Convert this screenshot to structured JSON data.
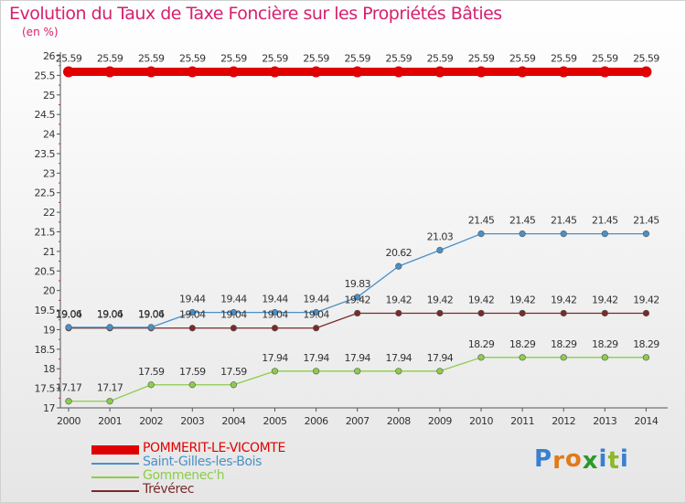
{
  "chart_data": {
    "type": "line",
    "title": "Evolution du Taux de Taxe Foncière sur les Propriétés Bâties",
    "ylabel": "(en %)",
    "xlabel": "",
    "categories": [
      "2000",
      "2001",
      "2002",
      "2003",
      "2004",
      "2005",
      "2006",
      "2007",
      "2008",
      "2009",
      "2010",
      "2011",
      "2012",
      "2013",
      "2014"
    ],
    "ylim": [
      17,
      26
    ],
    "yticks": [
      "17",
      "17.5",
      "18",
      "18.5",
      "19",
      "19.5",
      "20",
      "20.5",
      "21",
      "21.5",
      "22",
      "22.5",
      "23",
      "23.5",
      "24",
      "24.5",
      "25",
      "25.5",
      "26"
    ],
    "series": [
      {
        "name": "POMMERIT-LE-VICOMTE",
        "color": "#e00000",
        "values": [
          25.59,
          25.59,
          25.59,
          25.59,
          25.59,
          25.59,
          25.59,
          25.59,
          25.59,
          25.59,
          25.59,
          25.59,
          25.59,
          25.59,
          25.59
        ],
        "labels": [
          "25.59",
          "25.59",
          "25.59",
          "25.59",
          "25.59",
          "25.59",
          "25.59",
          "25.59",
          "25.59",
          "25.59",
          "25.59",
          "25.59",
          "25.59",
          "25.59",
          "25.59"
        ]
      },
      {
        "name": "Saint-Gilles-les-Bois",
        "color": "#4a90c8",
        "values": [
          19.06,
          19.06,
          19.06,
          19.44,
          19.44,
          19.44,
          19.44,
          19.83,
          20.62,
          21.03,
          21.45,
          21.45,
          21.45,
          21.45,
          21.45
        ],
        "labels": [
          "19.06",
          "19.06",
          "19.06",
          "19.44",
          "19.44",
          "19.44",
          "19.44",
          "19.83",
          "20.62",
          "21.03",
          "21.45",
          "21.45",
          "21.45",
          "21.45",
          "21.45"
        ]
      },
      {
        "name": "Gommenec'h",
        "color": "#8ccd4a",
        "values": [
          17.17,
          17.17,
          17.59,
          17.59,
          17.59,
          17.94,
          17.94,
          17.94,
          17.94,
          17.94,
          18.29,
          18.29,
          18.29,
          18.29,
          18.29
        ],
        "labels": [
          "17.17",
          "17.17",
          "17.59",
          "17.59",
          "17.59",
          "17.94",
          "17.94",
          "17.94",
          "17.94",
          "17.94",
          "18.29",
          "18.29",
          "18.29",
          "18.29",
          "18.29"
        ]
      },
      {
        "name": "Trévérec",
        "color": "#7a2a2a",
        "values": [
          19.04,
          19.04,
          19.04,
          19.04,
          19.04,
          19.04,
          19.04,
          19.42,
          19.42,
          19.42,
          19.42,
          19.42,
          19.42,
          19.42,
          19.42
        ],
        "labels": [
          "19.04",
          "19.04",
          "19.04",
          "19.04",
          "19.04",
          "19.04",
          "19.04",
          "19.42",
          "19.42",
          "19.42",
          "19.42",
          "19.42",
          "19.42",
          "19.42",
          "19.42"
        ]
      }
    ]
  },
  "logo": {
    "letters": [
      "P",
      "r",
      "o",
      "x",
      "i",
      "t",
      "i"
    ],
    "colors": [
      "#3a7fd0",
      "#e07a1a",
      "#e07a1a",
      "#2a9a2a",
      "#3a7fd0",
      "#8ab82a",
      "#3a7fd0"
    ]
  }
}
